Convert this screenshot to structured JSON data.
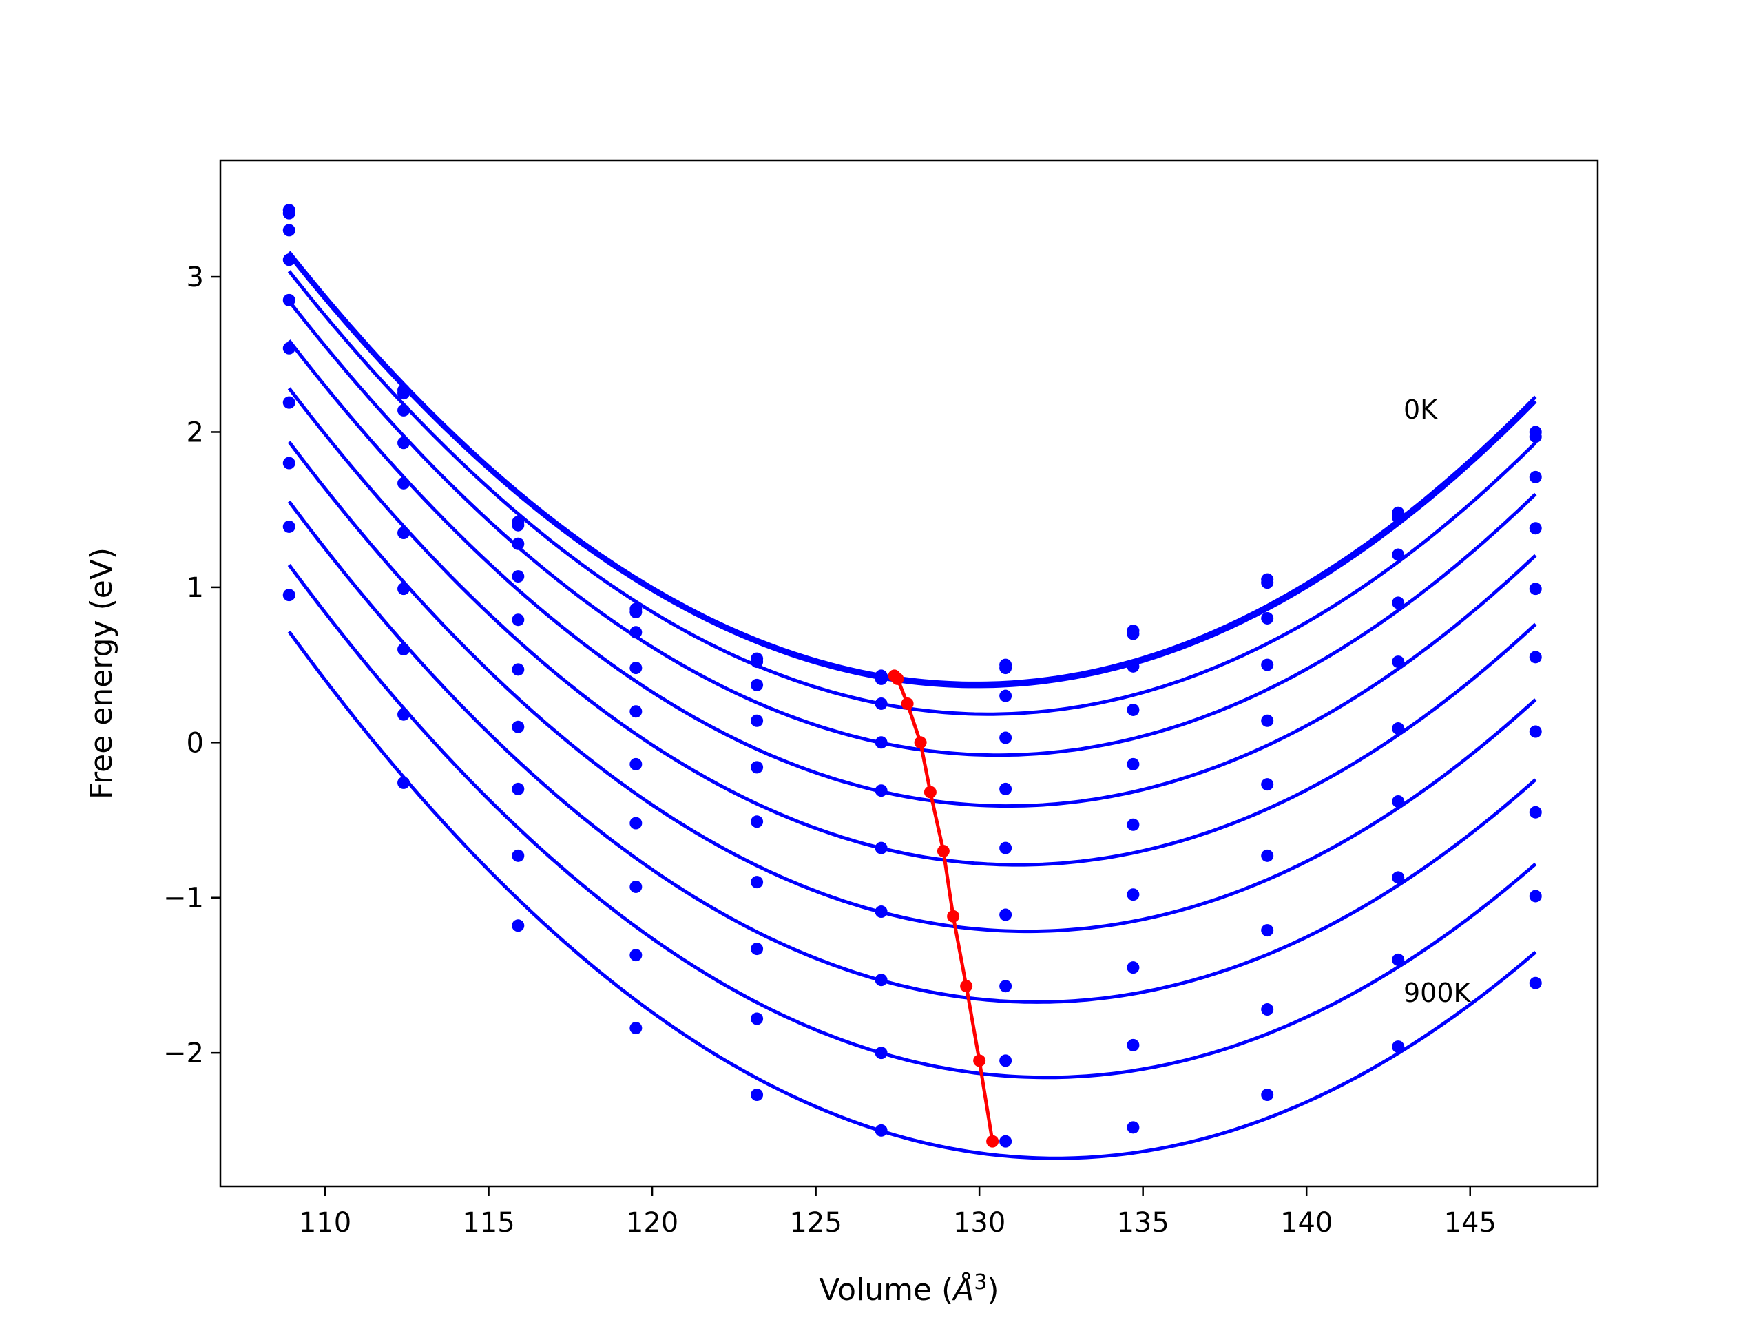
{
  "chart_data": {
    "type": "line",
    "title": "",
    "xlabel": "Volume (",
    "xlabel_symbol": "Å",
    "xlabel_exp": "3",
    "xlabel_close": ")",
    "ylabel": "Free energy (eV)",
    "xlim": [
      106.8,
      148.9
    ],
    "ylim": [
      -2.86,
      3.75
    ],
    "xticks": [
      110,
      115,
      120,
      125,
      130,
      135,
      140,
      145
    ],
    "xtick_labels": [
      "110",
      "115",
      "120",
      "125",
      "130",
      "135",
      "140",
      "145"
    ],
    "yticks": [
      -2,
      -1,
      0,
      1,
      2,
      3
    ],
    "ytick_labels": [
      "−2",
      "−1",
      "0",
      "1",
      "2",
      "3"
    ],
    "grid": false,
    "legend": "none",
    "annotations": [
      {
        "text": "0K",
        "x": 142.8,
        "y": 2.05
      },
      {
        "text": "900K",
        "x": 142.8,
        "y": -1.72
      }
    ],
    "curve_color": "#0000ff",
    "min_color": "#ff0000",
    "x": [
      108.9,
      112.4,
      115.9,
      119.5,
      123.2,
      127.0,
      130.8,
      134.7,
      138.8,
      142.8,
      147.0
    ],
    "series": [
      {
        "values": [
          3.43,
          2.27,
          1.42,
          0.86,
          0.54,
          0.43,
          0.5,
          0.72,
          1.05,
          1.48,
          2.0
        ]
      },
      {
        "values": [
          3.41,
          2.25,
          1.4,
          0.84,
          0.52,
          0.41,
          0.48,
          0.7,
          1.03,
          1.45,
          1.97
        ]
      },
      {
        "values": [
          3.3,
          2.14,
          1.28,
          0.71,
          0.37,
          0.25,
          0.3,
          0.49,
          0.8,
          1.21,
          1.71
        ]
      },
      {
        "values": [
          3.11,
          1.93,
          1.07,
          0.48,
          0.14,
          0.0,
          0.03,
          0.21,
          0.5,
          0.9,
          1.38
        ]
      },
      {
        "values": [
          2.85,
          1.67,
          0.79,
          0.2,
          -0.16,
          -0.31,
          -0.3,
          -0.14,
          0.14,
          0.52,
          0.99
        ]
      },
      {
        "values": [
          2.54,
          1.35,
          0.47,
          -0.14,
          -0.51,
          -0.68,
          -0.68,
          -0.53,
          -0.27,
          0.09,
          0.55
        ]
      },
      {
        "values": [
          2.19,
          0.99,
          0.1,
          -0.52,
          -0.9,
          -1.09,
          -1.11,
          -0.98,
          -0.73,
          -0.38,
          0.07
        ]
      },
      {
        "values": [
          1.8,
          0.6,
          -0.3,
          -0.93,
          -1.33,
          -1.53,
          -1.57,
          -1.45,
          -1.21,
          -0.87,
          -0.45
        ]
      },
      {
        "values": [
          1.39,
          0.18,
          -0.73,
          -1.37,
          -1.78,
          -2.0,
          -2.05,
          -1.95,
          -1.72,
          -1.4,
          -0.99
        ]
      },
      {
        "values": [
          0.95,
          -0.26,
          -1.18,
          -1.84,
          -2.27,
          -2.5,
          -2.57,
          -2.48,
          -2.27,
          -1.96,
          -1.55
        ]
      }
    ],
    "minima": {
      "x": [
        127.4,
        127.5,
        127.8,
        128.2,
        128.5,
        128.9,
        129.2,
        129.6,
        130.0,
        130.4
      ],
      "y": [
        0.43,
        0.41,
        0.25,
        0.0,
        -0.32,
        -0.7,
        -1.12,
        -1.57,
        -2.05,
        -2.57
      ]
    }
  }
}
